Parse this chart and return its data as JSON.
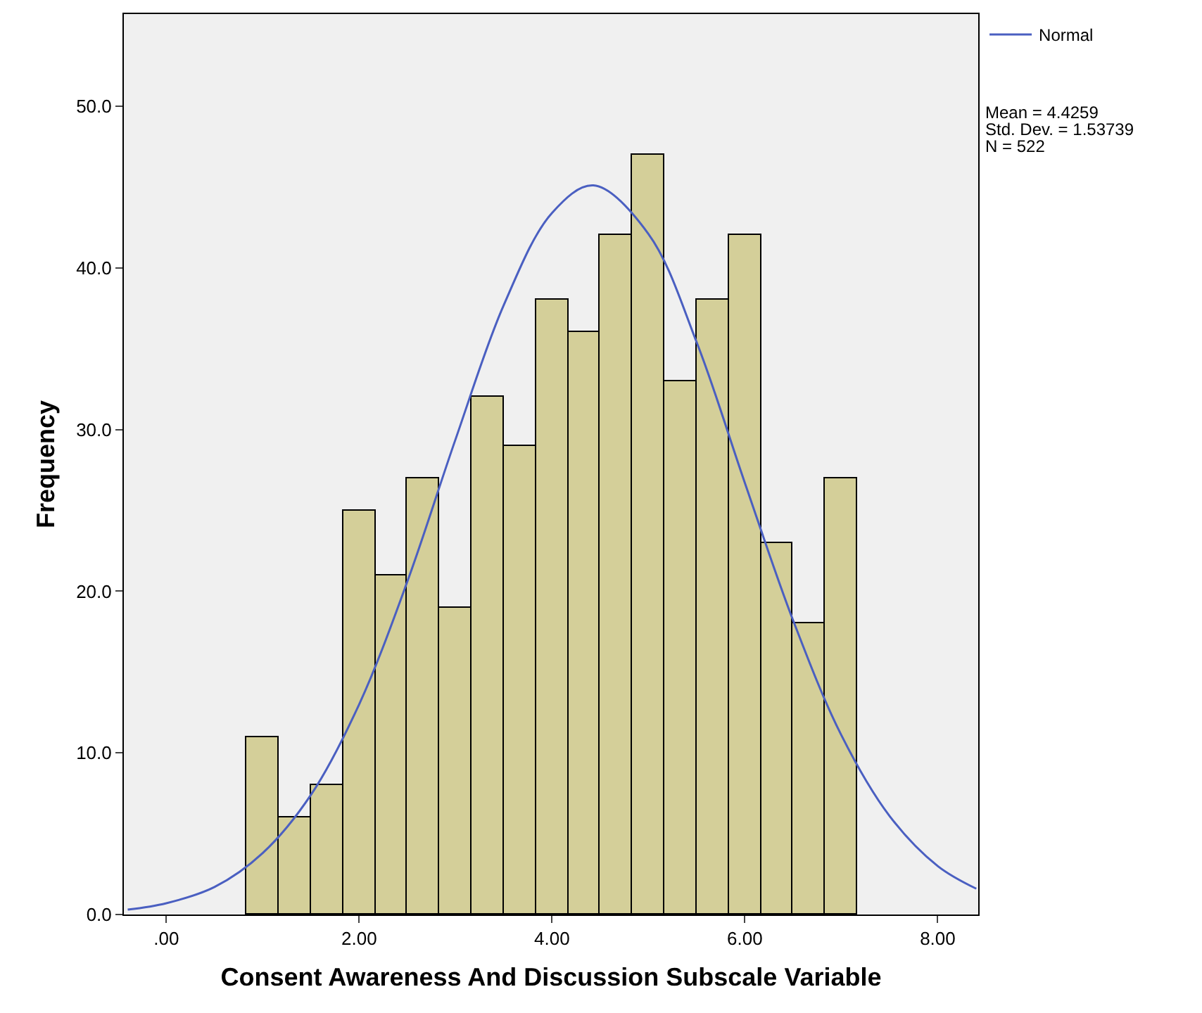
{
  "chart_data": {
    "type": "histogram",
    "xlabel": "Consent Awareness And Discussion Subscale Variable",
    "ylabel": "Frequency",
    "bins": [
      0.83,
      1.17,
      1.5,
      1.83,
      2.17,
      2.5,
      2.83,
      3.17,
      3.5,
      3.83,
      4.17,
      4.5,
      4.83,
      5.17,
      5.5,
      5.83,
      6.17,
      6.5,
      6.83,
      7.17
    ],
    "series": [
      {
        "color": "#d4cf99",
        "values": [
          11,
          6,
          8,
          25,
          21,
          27,
          19,
          32,
          29,
          38,
          36,
          42,
          47,
          33,
          38,
          42,
          23,
          18,
          27
        ]
      },
      {
        "type": "line",
        "name": "Normal",
        "color": "#4a5fc1",
        "x": [
          -0.4,
          0,
          0.5,
          1,
          1.5,
          2,
          2.5,
          3,
          3.5,
          4,
          4.43,
          5,
          5.5,
          6,
          6.5,
          7,
          7.5,
          8,
          8.4
        ],
        "values": [
          0.3,
          0.7,
          1.7,
          3.8,
          7.4,
          13.0,
          20.6,
          29.4,
          37.7,
          43.4,
          45.1,
          42.1,
          35.4,
          26.7,
          18.2,
          11.1,
          6.1,
          3.0,
          1.6
        ]
      }
    ],
    "xlim": [
      -0.44,
      8.42
    ],
    "ylim": [
      0,
      55.7
    ],
    "xticks": [
      {
        "value": 0,
        "label": ".00"
      },
      {
        "value": 2,
        "label": "2.00"
      },
      {
        "value": 4,
        "label": "4.00"
      },
      {
        "value": 6,
        "label": "6.00"
      },
      {
        "value": 8,
        "label": "8.00"
      }
    ],
    "yticks": [
      {
        "value": 0,
        "label": "0.0"
      },
      {
        "value": 10,
        "label": "10.0"
      },
      {
        "value": 20,
        "label": "20.0"
      },
      {
        "value": 30,
        "label": "30.0"
      },
      {
        "value": 40,
        "label": "40.0"
      },
      {
        "value": 50,
        "label": "50.0"
      }
    ],
    "legend": "top right",
    "annotations": [
      "Mean = 4.4259",
      "Std. Dev. = 1.53739",
      "N = 522"
    ]
  }
}
